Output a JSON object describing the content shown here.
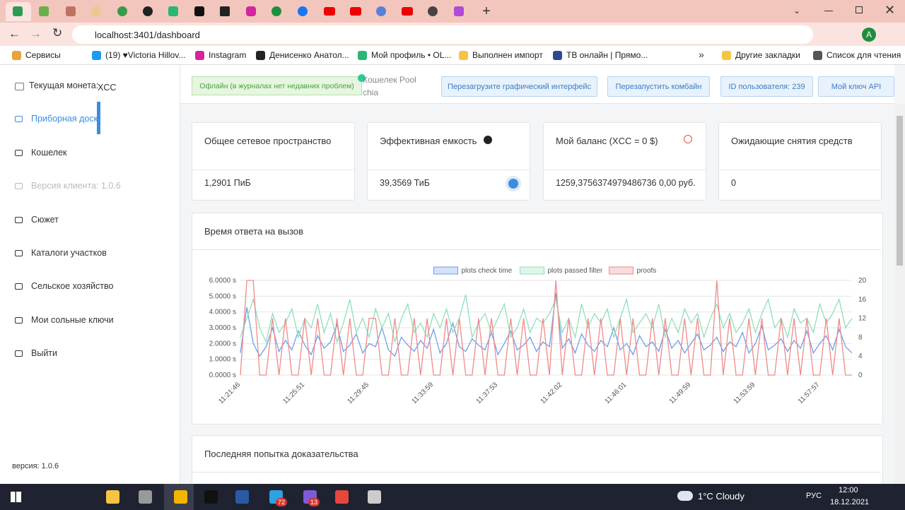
{
  "browser": {
    "url": "localhost:3401/dashboard",
    "bookmarks": [
      "Сервисы",
      "(19) ♥Victoria Hillov...",
      "Instagram",
      "Денисенко Анатол...",
      "Мой профиль • OL...",
      "Выполнен импорт",
      "ТВ онлайн | Прямо...",
      "Другие закладки",
      "Список для чтения"
    ]
  },
  "sidebar": {
    "current_coin_label": "Текущая монета:",
    "current_coin": "XCC",
    "items": [
      "Приборная доска",
      "Кошелек",
      "Версия клиента: 1.0.6",
      "Сюжет",
      "Каталоги участков",
      "Сельское хозяйство",
      "Мои сольные ключи",
      "Выйти"
    ],
    "version": "версия: 1.0.6"
  },
  "header": {
    "status": "Офлайн (в журналах нет недавних проблем)",
    "pool": "Кошелек Pool chia",
    "buttons": [
      "Перезагрузите графический интерфейс",
      "Перезапустить комбайн",
      "ID пользователя: 239",
      "Мой ключ API"
    ]
  },
  "cards": [
    {
      "title": "Общее сетевое пространство",
      "value": "1,2901 ПиБ"
    },
    {
      "title": "Эффективная емкость",
      "value": "39,3569 ТиБ"
    },
    {
      "title": "Мой баланс (XCC = 0 $)",
      "value": "1259,3756374979486736 0,00 руб."
    },
    {
      "title": "Ожидающие снятия средств",
      "value": "0"
    }
  ],
  "chart_data": {
    "type": "line",
    "title": "Время ответа на вызов",
    "categories": [
      "11:21:46",
      null,
      null,
      null,
      null,
      null,
      null,
      null,
      null,
      null,
      "11:25:51",
      null,
      null,
      null,
      null,
      null,
      null,
      null,
      null,
      null,
      "11:29:45",
      null,
      null,
      null,
      null,
      null,
      null,
      null,
      null,
      null,
      "11:33:59",
      null,
      null,
      null,
      null,
      null,
      null,
      null,
      null,
      null,
      "11:37:53",
      null,
      null,
      null,
      null,
      null,
      null,
      null,
      null,
      null,
      "11:42:02",
      null,
      null,
      null,
      null,
      null,
      null,
      null,
      null,
      null,
      "11:46:01",
      null,
      null,
      null,
      null,
      null,
      null,
      null,
      null,
      null,
      "11:49:59",
      null,
      null,
      null,
      null,
      null,
      null,
      null,
      null,
      null,
      "11:53:59",
      null,
      null,
      null,
      null,
      null,
      null,
      null,
      null,
      null,
      "11:57:57",
      null,
      null,
      null,
      null,
      null
    ],
    "series": [
      {
        "name": "plots check time",
        "color": "#6d9eeb",
        "values": [
          1.4,
          4.3,
          2.0,
          1.2,
          1.8,
          3.0,
          1.5,
          2.2,
          1.6,
          2.8,
          1.9,
          1.3,
          2.5,
          1.7,
          2.1,
          3.2,
          1.5,
          1.9,
          2.6,
          1.4,
          2.0,
          1.8,
          3.0,
          1.6,
          1.2,
          2.4,
          1.9,
          1.5,
          2.2,
          1.7,
          2.9,
          1.4,
          2.0,
          3.3,
          1.8,
          1.5,
          2.3,
          1.9,
          1.6,
          2.7,
          1.3,
          2.0,
          2.8,
          1.6,
          1.9,
          2.4,
          1.5,
          2.1,
          1.8,
          5.2,
          1.7,
          2.3,
          1.4,
          2.6,
          1.9,
          1.5,
          2.2,
          1.8,
          3.0,
          1.6,
          2.0,
          1.3,
          2.5,
          1.8,
          2.1,
          1.5,
          2.9,
          1.7,
          2.2,
          1.4,
          2.0,
          2.6,
          1.6,
          1.9,
          2.4,
          1.5,
          2.1,
          1.8,
          2.7,
          1.4,
          2.0,
          3.1,
          1.6,
          1.9,
          2.3,
          1.5,
          2.2,
          1.7,
          2.8,
          1.4,
          2.0,
          2.5,
          1.6,
          2.9,
          1.8,
          1.4
        ]
      },
      {
        "name": "plots passed filter",
        "color": "#8fe0b8",
        "axis": "y2",
        "values": [
          8,
          12,
          16,
          10,
          7,
          13,
          9,
          11,
          14,
          8,
          12,
          10,
          15,
          9,
          13,
          7,
          11,
          16,
          9,
          12,
          8,
          14,
          10,
          13,
          7,
          12,
          15,
          9,
          11,
          8,
          13,
          10,
          14,
          9,
          12,
          17,
          8,
          11,
          13,
          9,
          12,
          15,
          8,
          10,
          14,
          9,
          12,
          11,
          13,
          16,
          9,
          12,
          8,
          15,
          10,
          13,
          11,
          14,
          8,
          12,
          16,
          9,
          11,
          13,
          10,
          15,
          8,
          12,
          9,
          14,
          11,
          13,
          8,
          12,
          15,
          10,
          13,
          9,
          11,
          14,
          9,
          13,
          16,
          10,
          12,
          8,
          14,
          11,
          12,
          9,
          15,
          11,
          13,
          16,
          10,
          12
        ]
      },
      {
        "name": "proofs",
        "color": "#ef8a8a",
        "axis": "y2",
        "values": [
          0,
          20,
          20,
          0,
          0,
          12,
          0,
          12,
          0,
          0,
          12,
          0,
          12,
          0,
          0,
          12,
          0,
          12,
          0,
          0,
          12,
          12,
          0,
          0,
          12,
          0,
          0,
          12,
          0,
          12,
          0,
          0,
          12,
          0,
          12,
          0,
          0,
          12,
          0,
          12,
          0,
          0,
          12,
          0,
          12,
          0,
          0,
          12,
          0,
          20,
          0,
          12,
          0,
          0,
          12,
          0,
          12,
          0,
          0,
          12,
          0,
          12,
          0,
          0,
          12,
          0,
          12,
          0,
          0,
          12,
          0,
          12,
          0,
          0,
          20,
          0,
          12,
          0,
          0,
          12,
          0,
          12,
          0,
          0,
          12,
          0,
          12,
          0,
          12,
          0,
          0,
          12,
          0,
          12,
          0,
          0
        ]
      }
    ],
    "ylim": [
      0,
      6
    ],
    "yticks": [
      {
        "value": 0,
        "label": "0.0000 s"
      },
      {
        "value": 1,
        "label": "1.0000 s"
      },
      {
        "value": 2,
        "label": "2.0000 s"
      },
      {
        "value": 3,
        "label": "3.0000 s"
      },
      {
        "value": 4,
        "label": "4.0000 s"
      },
      {
        "value": 5,
        "label": "5.0000 s"
      },
      {
        "value": 6,
        "label": "6.0000 s"
      }
    ],
    "y2lim": [
      0,
      20
    ],
    "y2ticks": [
      0,
      4,
      8,
      12,
      16,
      20
    ],
    "grid": true,
    "legend": "top"
  },
  "next_card": {
    "title": "Последняя попытка доказательства"
  },
  "taskbar": {
    "weather": "1°C Cloudy",
    "lang": "РУС",
    "time": "12:00",
    "date": "18.12.2021",
    "badges": [
      "72",
      "13"
    ]
  }
}
